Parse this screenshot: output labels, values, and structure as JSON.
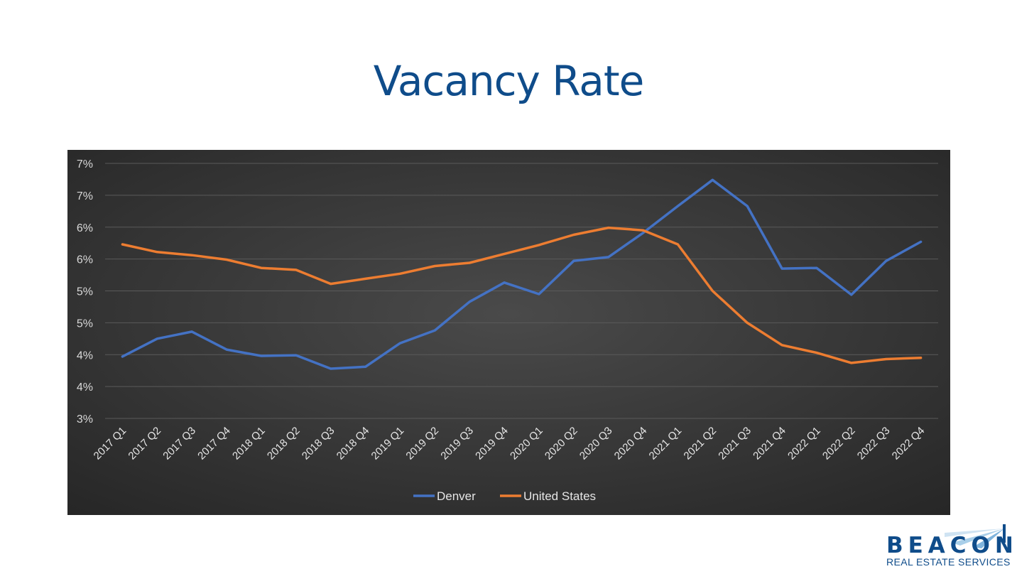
{
  "slide": {
    "title": "Vacancy Rate"
  },
  "logo": {
    "name": "BEACON",
    "tagline": "REAL ESTATE SERVICES"
  },
  "colors": {
    "title": "#0f4c8a",
    "denver": "#4472c4",
    "united_states": "#ed7d31",
    "plot_background": "#3a3a3a",
    "gridline": "#5a5a5a"
  },
  "chart_data": {
    "type": "line",
    "title": "",
    "xlabel": "",
    "ylabel": "",
    "categories": [
      "2017 Q1",
      "2017 Q2",
      "2017 Q3",
      "2017 Q4",
      "2018 Q1",
      "2018 Q2",
      "2018 Q3",
      "2018 Q4",
      "2019 Q1",
      "2019 Q2",
      "2019 Q3",
      "2019 Q4",
      "2020 Q1",
      "2020 Q2",
      "2020 Q3",
      "2020 Q4",
      "2021 Q1",
      "2021 Q2",
      "2021 Q3",
      "2021 Q4",
      "2022 Q1",
      "2022 Q2",
      "2022 Q3",
      "2022 Q4"
    ],
    "ylim": [
      3.0,
      7.0
    ],
    "yticks": [
      3.0,
      3.5,
      4.0,
      4.5,
      5.0,
      5.5,
      6.0,
      6.5,
      7.0
    ],
    "ytick_labels": [
      "3%",
      "4%",
      "4%",
      "5%",
      "5%",
      "6%",
      "6%",
      "7%",
      "7%"
    ],
    "grid": true,
    "legend": "bottom-center",
    "series": [
      {
        "name": "Denver",
        "color": "#4472c4",
        "values": [
          3.97,
          4.25,
          4.36,
          4.08,
          3.98,
          3.99,
          3.78,
          3.81,
          4.18,
          4.38,
          4.83,
          5.13,
          4.95,
          5.47,
          5.53,
          5.91,
          6.33,
          6.74,
          6.33,
          5.35,
          5.36,
          4.94,
          5.47,
          5.77
        ]
      },
      {
        "name": "United States",
        "color": "#ed7d31",
        "values": [
          5.73,
          5.61,
          5.56,
          5.49,
          5.36,
          5.33,
          5.11,
          5.19,
          5.27,
          5.39,
          5.44,
          5.58,
          5.72,
          5.88,
          5.99,
          5.95,
          5.73,
          5.0,
          4.5,
          4.15,
          4.03,
          3.87,
          3.93,
          3.95
        ]
      }
    ]
  }
}
